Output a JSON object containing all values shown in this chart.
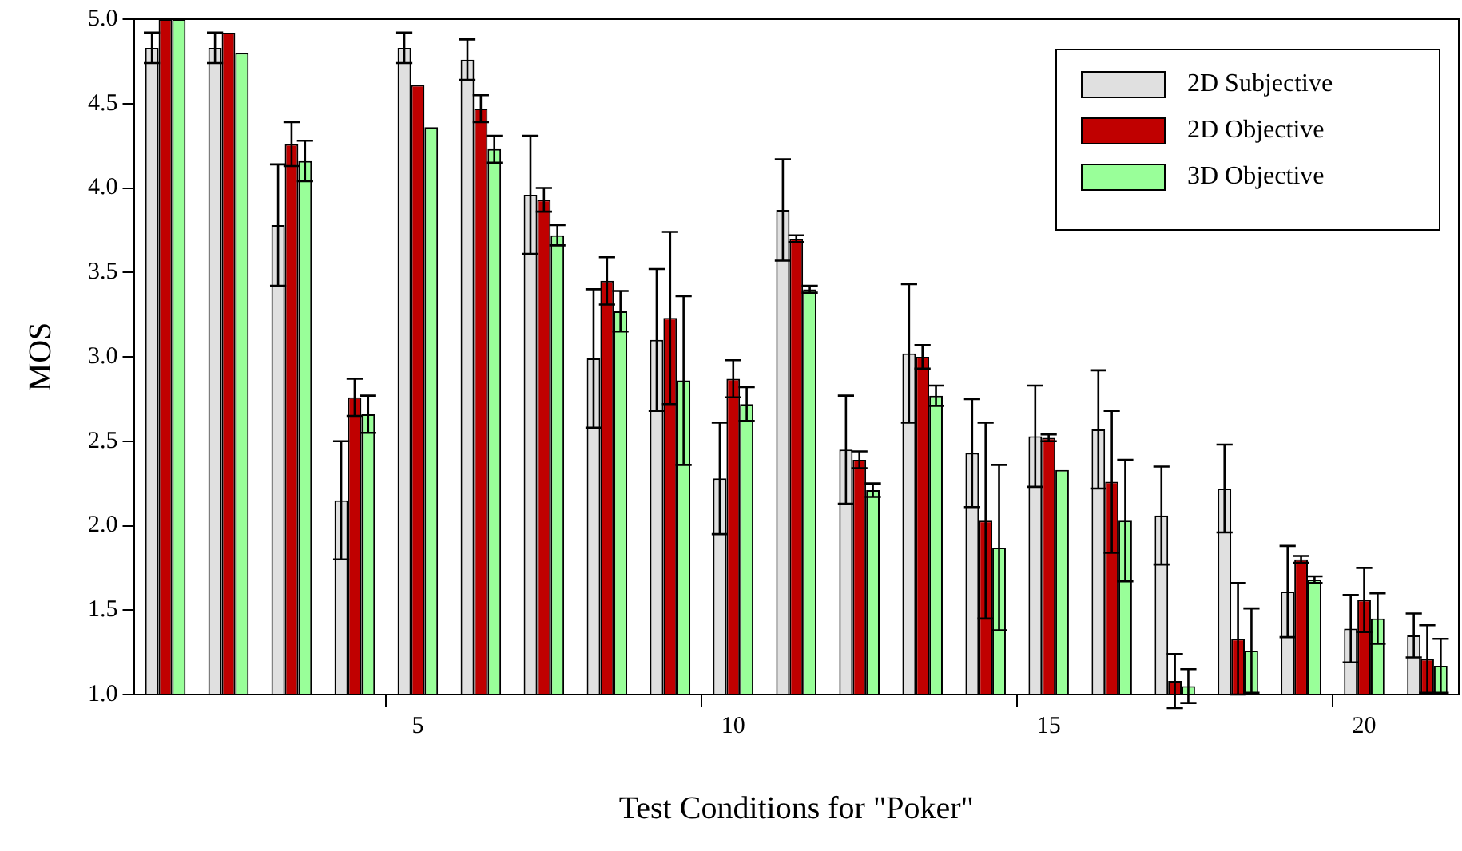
{
  "chart_data": {
    "type": "bar",
    "xlabel": "Test Conditions for \"Poker\"",
    "ylabel": "MOS",
    "categories": [
      null,
      null,
      null,
      null,
      "5",
      null,
      null,
      null,
      null,
      "10",
      null,
      null,
      null,
      null,
      "15",
      null,
      null,
      null,
      null,
      "20",
      null
    ],
    "series": [
      {
        "name": "2D Subjective",
        "color": "#e0e0e0",
        "values": [
          4.83,
          4.83,
          3.78,
          2.15,
          4.83,
          4.76,
          3.96,
          2.99,
          3.1,
          2.28,
          3.87,
          2.45,
          3.02,
          2.43,
          2.53,
          2.57,
          2.06,
          2.22,
          1.61,
          1.39,
          1.35
        ],
        "errors": [
          0.09,
          0.09,
          0.36,
          0.35,
          0.09,
          0.12,
          0.35,
          0.41,
          0.42,
          0.33,
          0.3,
          0.32,
          0.41,
          0.32,
          0.3,
          0.35,
          0.29,
          0.26,
          0.27,
          0.2,
          0.13
        ]
      },
      {
        "name": "2D Objective",
        "color": "#c00000",
        "values": [
          5.0,
          4.92,
          4.26,
          2.76,
          4.61,
          4.47,
          3.93,
          3.45,
          3.23,
          2.87,
          3.7,
          2.39,
          3.0,
          2.03,
          2.52,
          2.26,
          1.08,
          1.33,
          1.8,
          1.56,
          1.21
        ],
        "errors": [
          null,
          null,
          0.13,
          0.11,
          null,
          0.08,
          0.07,
          0.14,
          0.51,
          0.11,
          0.02,
          0.05,
          0.07,
          0.58,
          0.02,
          0.42,
          0.16,
          0.33,
          0.02,
          0.19,
          0.2
        ]
      },
      {
        "name": "3D Objective",
        "color": "#99ff99",
        "values": [
          5.0,
          4.8,
          4.16,
          2.66,
          4.36,
          4.23,
          3.72,
          3.27,
          2.86,
          2.72,
          3.4,
          2.21,
          2.77,
          1.87,
          2.33,
          2.03,
          1.05,
          1.26,
          1.68,
          1.45,
          1.17
        ],
        "errors": [
          null,
          null,
          0.12,
          0.11,
          null,
          0.08,
          0.06,
          0.12,
          0.5,
          0.1,
          0.02,
          0.04,
          0.06,
          0.49,
          null,
          0.36,
          0.1,
          0.25,
          0.02,
          0.15,
          0.16
        ]
      }
    ],
    "ylim": [
      1.0,
      5.0
    ],
    "yticks": [
      {
        "value": 1,
        "label": "1.0"
      },
      {
        "value": 1.5,
        "label": "1.5"
      },
      {
        "value": 2,
        "label": "2.0"
      },
      {
        "value": 2.5,
        "label": "2.5"
      },
      {
        "value": 3,
        "label": "3.0"
      },
      {
        "value": 3.5,
        "label": "3.5"
      },
      {
        "value": 4,
        "label": "4.0"
      },
      {
        "value": 4.5,
        "label": "4.5"
      },
      {
        "value": 5,
        "label": "5.0"
      }
    ],
    "grid": false,
    "legend": "top right"
  }
}
